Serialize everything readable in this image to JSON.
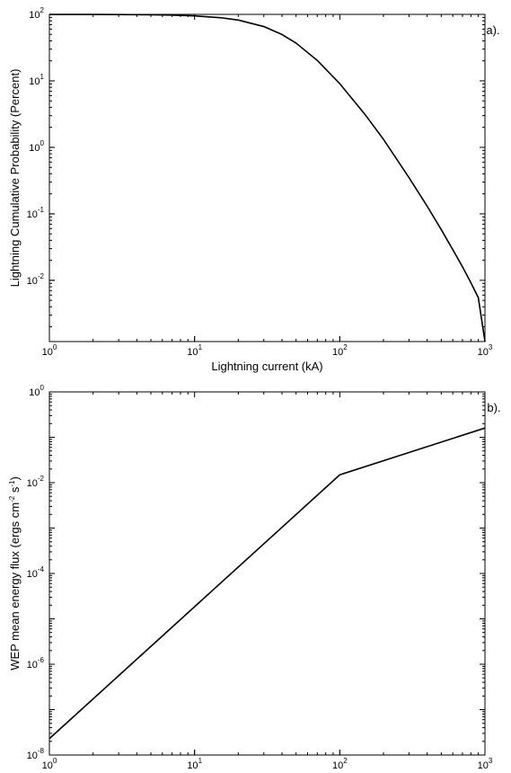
{
  "chart_data": [
    {
      "type": "line",
      "panel_label": "a).",
      "xlabel": "Lightning current (kA)",
      "ylabel": "Lightning Cumulative Probability (Percent)",
      "xscale": "log",
      "yscale": "log",
      "xlim": [
        1,
        1000
      ],
      "ylim": [
        0.0012,
        100
      ],
      "x_ticks": [
        1,
        10,
        100,
        1000
      ],
      "y_ticks": [
        0.01,
        0.1,
        1,
        10,
        100
      ],
      "grid": false,
      "series": [
        {
          "color": "#000000",
          "x": [
            1,
            2,
            3,
            5,
            7,
            10,
            15,
            20,
            30,
            40,
            50,
            70,
            100,
            150,
            200,
            300,
            400,
            500,
            600,
            700,
            800,
            900,
            1000
          ],
          "y": [
            99.9,
            99.7,
            99.4,
            98.5,
            97.3,
            94.9,
            89.3,
            82.2,
            65.6,
            49.8,
            37.0,
            20.3,
            9.08,
            3.08,
            1.32,
            0.35,
            0.13,
            0.058,
            0.029,
            0.016,
            0.0092,
            0.0055,
            0.0012
          ]
        }
      ]
    },
    {
      "type": "line",
      "panel_label": "b).",
      "xlabel": "Lightning current (kA)",
      "ylabel": "WEP mean energy flux (ergs cm",
      "ylabel_sup1": "-2",
      "ylabel_mid": " s",
      "ylabel_sup2": "-1",
      "ylabel_end": ")",
      "xscale": "log",
      "yscale": "log",
      "xlim": [
        1,
        1000
      ],
      "ylim": [
        1e-08,
        1
      ],
      "x_ticks": [
        1,
        10,
        100,
        1000
      ],
      "y_ticks": [
        1e-08,
        1e-06,
        0.0001,
        0.01,
        1
      ],
      "grid": false,
      "series": [
        {
          "color": "#000000",
          "x": [
            1,
            10,
            100,
            1000
          ],
          "y": [
            2.3e-08,
            1.85e-05,
            0.0149,
            0.16
          ]
        }
      ]
    }
  ]
}
